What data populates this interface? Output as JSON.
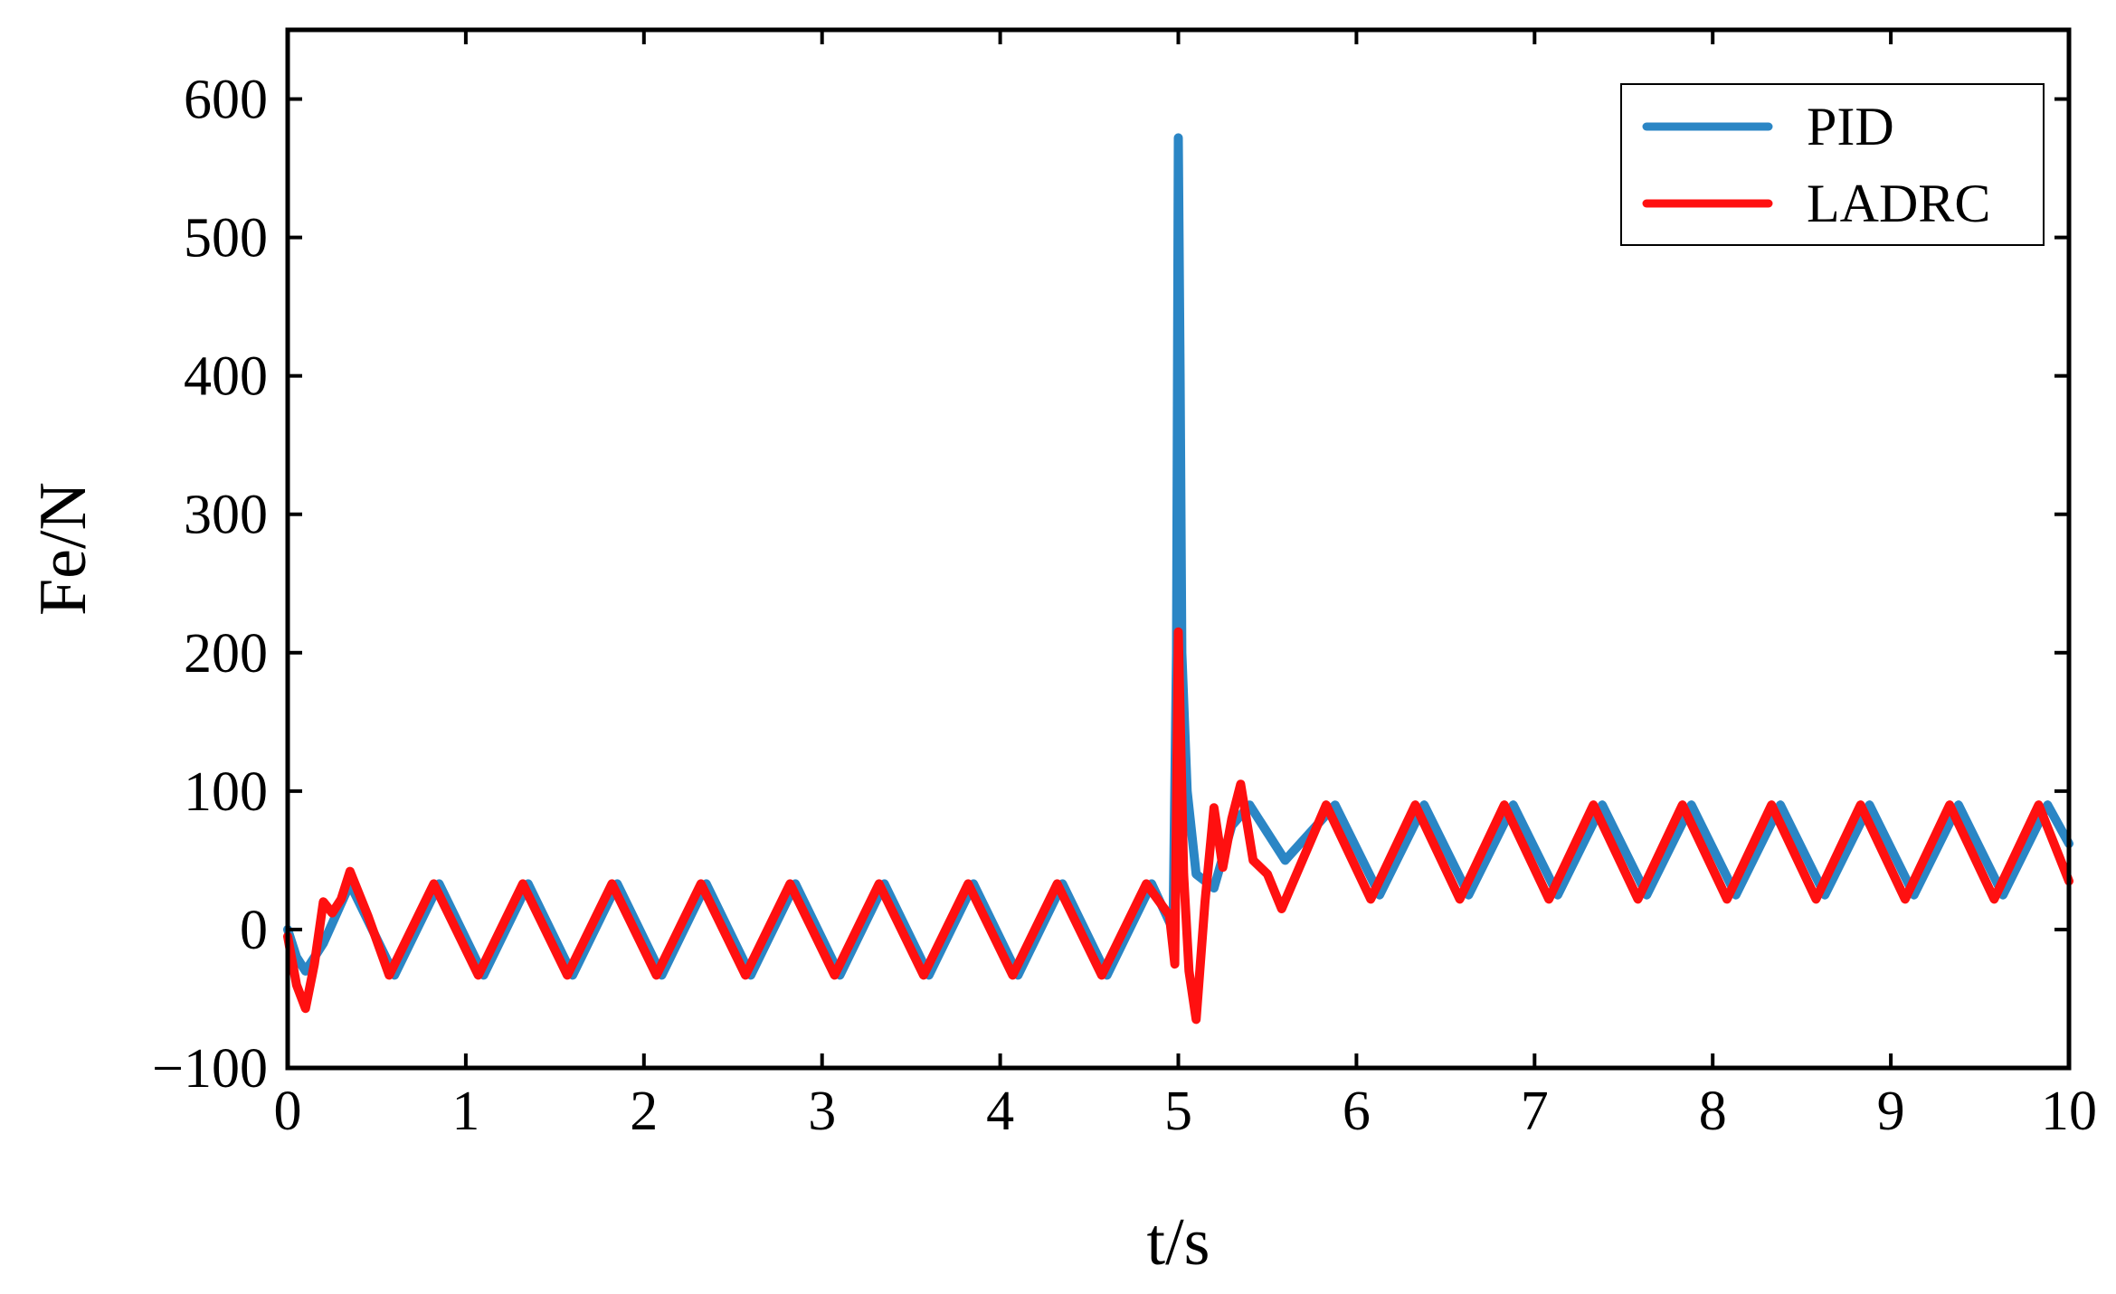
{
  "chart_data": {
    "type": "line",
    "title": "",
    "xlabel": "t/s",
    "ylabel": "Fe/N",
    "xlim": [
      0,
      10
    ],
    "ylim": [
      -100,
      650
    ],
    "xticks": [
      0,
      1,
      2,
      3,
      4,
      5,
      6,
      7,
      8,
      9,
      10
    ],
    "xtick_labels": [
      "0",
      "1",
      "2",
      "3",
      "4",
      "5",
      "6",
      "7",
      "8",
      "9",
      "10"
    ],
    "yticks": [
      -100,
      0,
      100,
      200,
      300,
      400,
      500,
      600
    ],
    "ytick_labels": [
      "−100",
      "0",
      "100",
      "200",
      "300",
      "400",
      "500",
      "600"
    ],
    "grid": false,
    "legend_position": "top-right",
    "series": [
      {
        "name": "PID",
        "color": "#2b86c5",
        "points": [
          [
            0.0,
            0
          ],
          [
            0.05,
            -20
          ],
          [
            0.1,
            -30
          ],
          [
            0.2,
            -10
          ],
          [
            0.35,
            33
          ],
          [
            0.6,
            -33
          ],
          [
            0.85,
            33
          ],
          [
            1.1,
            -33
          ],
          [
            1.35,
            33
          ],
          [
            1.6,
            -33
          ],
          [
            1.85,
            33
          ],
          [
            2.1,
            -33
          ],
          [
            2.35,
            33
          ],
          [
            2.6,
            -33
          ],
          [
            2.85,
            33
          ],
          [
            3.1,
            -33
          ],
          [
            3.35,
            33
          ],
          [
            3.6,
            -33
          ],
          [
            3.85,
            33
          ],
          [
            4.1,
            -33
          ],
          [
            4.35,
            33
          ],
          [
            4.6,
            -33
          ],
          [
            4.85,
            33
          ],
          [
            4.97,
            0
          ],
          [
            4.99,
            200
          ],
          [
            5.0,
            572
          ],
          [
            5.01,
            400
          ],
          [
            5.02,
            200
          ],
          [
            5.05,
            100
          ],
          [
            5.1,
            40
          ],
          [
            5.2,
            30
          ],
          [
            5.3,
            75
          ],
          [
            5.4,
            90
          ],
          [
            5.6,
            50
          ],
          [
            5.88,
            90
          ],
          [
            6.13,
            25
          ],
          [
            6.38,
            90
          ],
          [
            6.63,
            25
          ],
          [
            6.88,
            90
          ],
          [
            7.13,
            25
          ],
          [
            7.38,
            90
          ],
          [
            7.63,
            25
          ],
          [
            7.88,
            90
          ],
          [
            8.13,
            25
          ],
          [
            8.38,
            90
          ],
          [
            8.63,
            25
          ],
          [
            8.88,
            90
          ],
          [
            9.13,
            25
          ],
          [
            9.38,
            90
          ],
          [
            9.63,
            25
          ],
          [
            9.88,
            90
          ],
          [
            10.0,
            62
          ]
        ]
      },
      {
        "name": "LADRC",
        "color": "#ff1010",
        "points": [
          [
            0.0,
            -5
          ],
          [
            0.05,
            -40
          ],
          [
            0.1,
            -57
          ],
          [
            0.15,
            -25
          ],
          [
            0.2,
            20
          ],
          [
            0.25,
            12
          ],
          [
            0.3,
            22
          ],
          [
            0.35,
            42
          ],
          [
            0.45,
            10
          ],
          [
            0.57,
            -33
          ],
          [
            0.82,
            33
          ],
          [
            1.07,
            -33
          ],
          [
            1.32,
            33
          ],
          [
            1.57,
            -33
          ],
          [
            1.82,
            33
          ],
          [
            2.07,
            -33
          ],
          [
            2.32,
            33
          ],
          [
            2.57,
            -33
          ],
          [
            2.82,
            33
          ],
          [
            3.07,
            -33
          ],
          [
            3.32,
            33
          ],
          [
            3.57,
            -33
          ],
          [
            3.82,
            33
          ],
          [
            4.07,
            -33
          ],
          [
            4.32,
            33
          ],
          [
            4.57,
            -33
          ],
          [
            4.82,
            33
          ],
          [
            4.95,
            10
          ],
          [
            4.98,
            -25
          ],
          [
            5.0,
            215
          ],
          [
            5.03,
            40
          ],
          [
            5.06,
            -30
          ],
          [
            5.1,
            -65
          ],
          [
            5.15,
            20
          ],
          [
            5.2,
            88
          ],
          [
            5.25,
            45
          ],
          [
            5.3,
            80
          ],
          [
            5.35,
            105
          ],
          [
            5.42,
            50
          ],
          [
            5.5,
            40
          ],
          [
            5.58,
            15
          ],
          [
            5.83,
            90
          ],
          [
            6.08,
            22
          ],
          [
            6.33,
            90
          ],
          [
            6.58,
            22
          ],
          [
            6.83,
            90
          ],
          [
            7.08,
            22
          ],
          [
            7.33,
            90
          ],
          [
            7.58,
            22
          ],
          [
            7.83,
            90
          ],
          [
            8.08,
            22
          ],
          [
            8.33,
            90
          ],
          [
            8.58,
            22
          ],
          [
            8.83,
            90
          ],
          [
            9.08,
            22
          ],
          [
            9.33,
            90
          ],
          [
            9.58,
            22
          ],
          [
            9.83,
            90
          ],
          [
            10.0,
            35
          ]
        ]
      }
    ]
  }
}
